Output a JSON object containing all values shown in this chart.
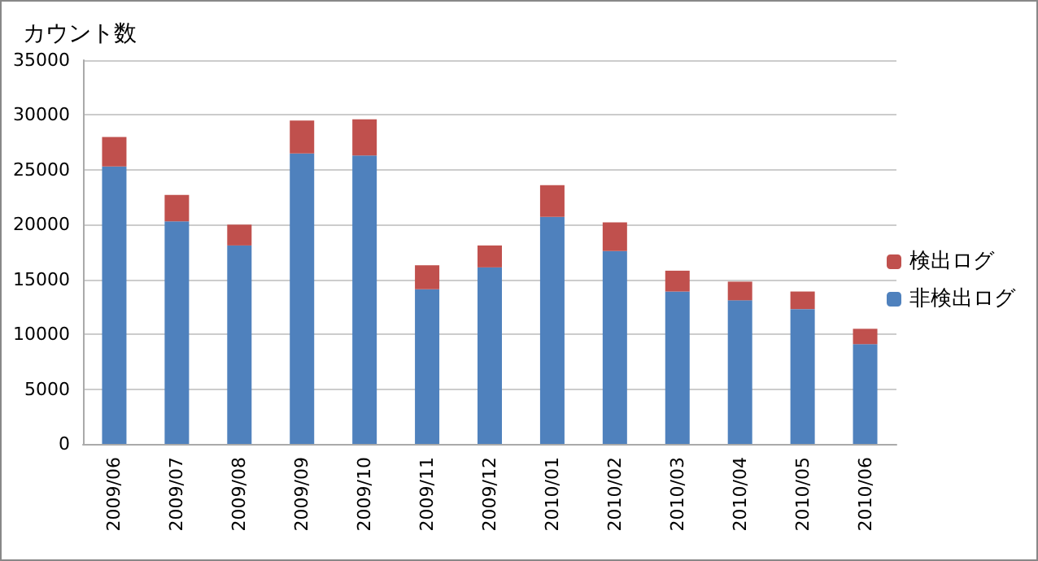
{
  "chart_data": {
    "type": "bar",
    "stacked": true,
    "ylabel": "カウント数",
    "categories": [
      "2009/06",
      "2009/07",
      "2009/08",
      "2009/09",
      "2009/10",
      "2009/11",
      "2009/12",
      "2010/01",
      "2010/02",
      "2010/03",
      "2010/04",
      "2010/05",
      "2010/06"
    ],
    "series": [
      {
        "name": "非検出ログ",
        "color": "#4f81bd",
        "values": [
          25300,
          20300,
          18100,
          26500,
          26300,
          14100,
          16100,
          20700,
          17600,
          13900,
          13100,
          12300,
          9100
        ]
      },
      {
        "name": "検出ログ",
        "color": "#c0504d",
        "values": [
          2700,
          2400,
          1900,
          3000,
          3300,
          2200,
          2000,
          2900,
          2600,
          1900,
          1700,
          1600,
          1400
        ]
      }
    ],
    "ylim": [
      0,
      35000
    ],
    "yticks": [
      0,
      5000,
      10000,
      15000,
      20000,
      25000,
      30000,
      35000
    ],
    "grid": "y",
    "legend": "right"
  }
}
